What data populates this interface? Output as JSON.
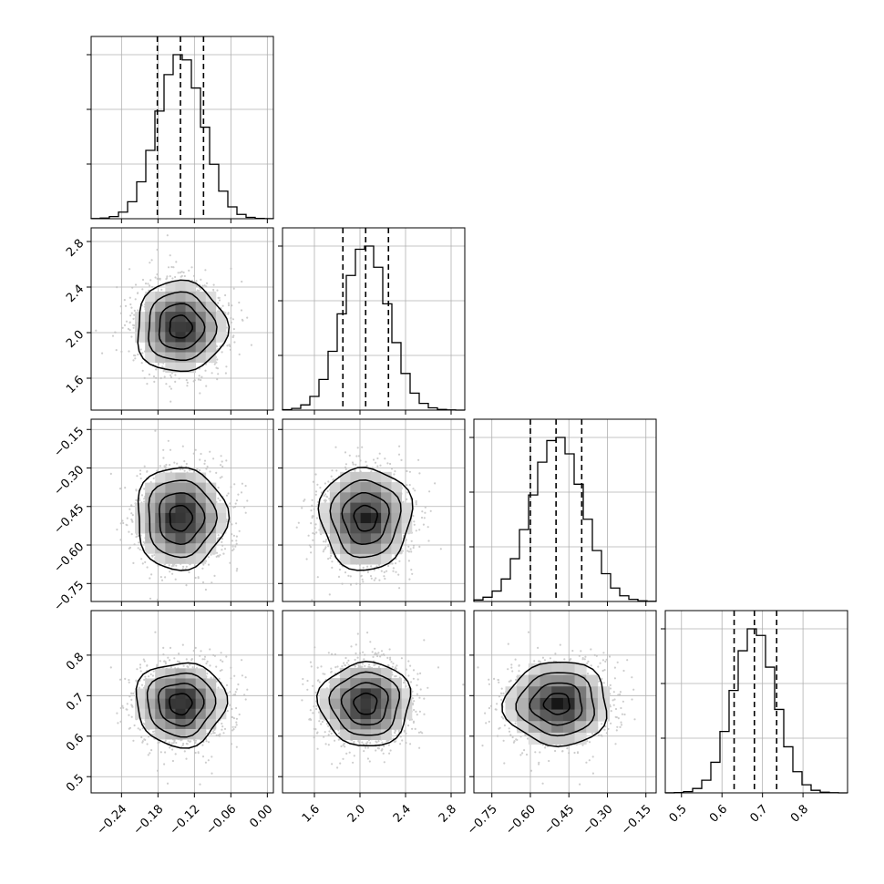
{
  "chart_data": {
    "type": "corner",
    "description_free": true,
    "parameters": [
      {
        "range": [
          -0.29,
          0.01
        ],
        "mean": -0.143,
        "sigma": 0.037,
        "quantiles": [
          -0.181,
          -0.143,
          -0.105
        ],
        "ticks": [
          -0.24,
          -0.18,
          -0.12,
          -0.06,
          0.0
        ],
        "tick_labels": [
          "−0.24",
          "−0.18",
          "−0.12",
          "−0.06",
          "0.00"
        ]
      },
      {
        "range": [
          1.32,
          2.92
        ],
        "mean": 2.05,
        "sigma": 0.2,
        "quantiles": [
          1.85,
          2.05,
          2.25
        ],
        "ticks": [
          1.6,
          2.0,
          2.4,
          2.8
        ],
        "tick_labels": [
          "1.6",
          "2.0",
          "2.4",
          "2.8"
        ]
      },
      {
        "range": [
          -0.82,
          -0.11
        ],
        "mean": -0.495,
        "sigma": 0.1,
        "quantiles": [
          -0.6,
          -0.5,
          -0.4
        ],
        "ticks": [
          -0.75,
          -0.6,
          -0.45,
          -0.3,
          -0.15
        ],
        "tick_labels": [
          "−0.75",
          "−0.60",
          "−0.45",
          "−0.30",
          "−0.15"
        ]
      },
      {
        "range": [
          0.46,
          0.91
        ],
        "mean": 0.68,
        "sigma": 0.052,
        "quantiles": [
          0.63,
          0.68,
          0.735
        ],
        "ticks": [
          0.5,
          0.6,
          0.7,
          0.8
        ],
        "tick_labels": [
          "0.5",
          "0.6",
          "0.7",
          "0.8"
        ]
      }
    ],
    "histogram_bins": 20,
    "quantile_levels": [
      0.16,
      0.5,
      0.84
    ],
    "grid": true,
    "colors": {
      "line": "#000000",
      "points": "#bdbdbd",
      "grid": "#b0b0b0",
      "density_dark": "#000000",
      "density_light": "#ffffff"
    }
  }
}
